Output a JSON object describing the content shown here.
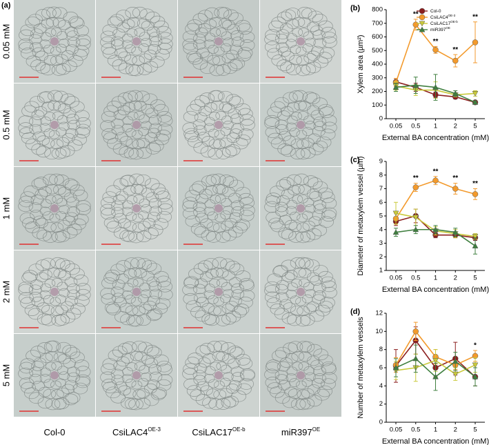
{
  "panel_a": {
    "label": "(a)",
    "rows": [
      "0.05 mM",
      "0.5 mM",
      "1 mM",
      "2 mM",
      "5 mM"
    ],
    "columns": [
      {
        "name": "Col-0"
      },
      {
        "name": "CsiLAC4",
        "sup": "OE-3"
      },
      {
        "name": "CsiLAC17",
        "sup": "OE-b"
      },
      {
        "name": "miR397",
        "sup": "OE"
      }
    ]
  },
  "chart_data": [
    {
      "type": "line",
      "panel_label": "(b)",
      "y_label": "Xylem area (µm²)",
      "x_label": "External BA concentration (mM)",
      "categories": [
        "0.05",
        "0.5",
        "1",
        "2",
        "5"
      ],
      "ylim": [
        0,
        800
      ],
      "yticks": [
        0,
        100,
        200,
        300,
        400,
        500,
        600,
        700,
        800
      ],
      "series": [
        {
          "name": "Col-0",
          "color": "#8b1e1e",
          "marker": "circle",
          "values": [
            270,
            230,
            175,
            160,
            120
          ],
          "errors": [
            25,
            30,
            20,
            15,
            10
          ]
        },
        {
          "name": "CsiLAC4",
          "name_sup": "OE-3",
          "color": "#f39a2c",
          "marker": "circle",
          "values": [
            265,
            690,
            505,
            425,
            560
          ],
          "errors": [
            30,
            40,
            25,
            45,
            150
          ]
        },
        {
          "name": "CsiLAC17",
          "name_sup": "OE-b",
          "color": "#c9c93a",
          "marker": "triangle-down",
          "values": [
            240,
            210,
            210,
            175,
            185
          ],
          "errors": [
            30,
            40,
            60,
            15,
            20
          ]
        },
        {
          "name": "miR397",
          "name_sup": "OE",
          "color": "#3f7f3f",
          "marker": "triangle-up",
          "values": [
            230,
            245,
            230,
            185,
            120
          ],
          "errors": [
            30,
            60,
            95,
            20,
            10
          ]
        }
      ],
      "annotations": [
        {
          "x": "0.5",
          "text": "**"
        },
        {
          "x": "1",
          "text": "**"
        },
        {
          "x": "2",
          "text": "**"
        },
        {
          "x": "5",
          "text": "**"
        }
      ]
    },
    {
      "type": "line",
      "panel_label": "(c)",
      "y_label": "Diameter of metaxylem vessel (µm)",
      "x_label": "External BA concentration (mM)",
      "categories": [
        "0.05",
        "0.5",
        "1",
        "2",
        "5"
      ],
      "ylim": [
        1,
        9
      ],
      "yticks": [
        1,
        2,
        3,
        4,
        5,
        6,
        7,
        8,
        9
      ],
      "series": [
        {
          "name": "Col-0",
          "color": "#8b1e1e",
          "marker": "circle",
          "values": [
            4.6,
            5.0,
            3.6,
            3.6,
            3.4
          ],
          "errors": [
            0.3,
            0.5,
            0.2,
            0.2,
            0.2
          ]
        },
        {
          "name": "CsiLAC4",
          "name_sup": "OE-3",
          "color": "#f39a2c",
          "marker": "circle",
          "values": [
            4.8,
            7.1,
            7.6,
            7.0,
            6.6
          ],
          "errors": [
            0.4,
            0.3,
            0.3,
            0.4,
            0.4
          ]
        },
        {
          "name": "CsiLAC17",
          "name_sup": "OE-b",
          "color": "#c9c93a",
          "marker": "triangle-down",
          "values": [
            5.2,
            4.9,
            3.9,
            3.7,
            3.5
          ],
          "errors": [
            0.8,
            0.6,
            0.3,
            0.3,
            0.2
          ]
        },
        {
          "name": "miR397",
          "name_sup": "OE",
          "color": "#3f7f3f",
          "marker": "triangle-up",
          "values": [
            3.8,
            4.0,
            4.0,
            3.8,
            2.8
          ],
          "errors": [
            0.3,
            0.3,
            0.3,
            0.3,
            0.6
          ]
        }
      ],
      "annotations": [
        {
          "x": "0.5",
          "text": "**"
        },
        {
          "x": "1",
          "text": "**"
        },
        {
          "x": "2",
          "text": "**"
        },
        {
          "x": "5",
          "text": "**"
        }
      ]
    },
    {
      "type": "line",
      "panel_label": "(d)",
      "y_label": "Number of metaxylem vessels",
      "x_label": "External BA concentration (mM)",
      "categories": [
        "0.05",
        "0.5",
        "1",
        "2",
        "5"
      ],
      "ylim": [
        0,
        12
      ],
      "yticks": [
        0,
        2,
        4,
        6,
        8,
        10,
        12
      ],
      "series": [
        {
          "name": "Col-0",
          "color": "#8b1e1e",
          "marker": "circle",
          "values": [
            6.2,
            9.0,
            6.0,
            7.0,
            5.0
          ],
          "errors": [
            1.8,
            1.5,
            1.0,
            1.8,
            1.0
          ]
        },
        {
          "name": "CsiLAC4",
          "name_sup": "OE-3",
          "color": "#f39a2c",
          "marker": "circle",
          "values": [
            6.3,
            10.0,
            7.2,
            6.3,
            7.3
          ],
          "errors": [
            0.8,
            1.0,
            0.8,
            0.5,
            0.6
          ]
        },
        {
          "name": "CsiLAC17",
          "name_sup": "OE-b",
          "color": "#c9c93a",
          "marker": "triangle-down",
          "values": [
            5.7,
            6.0,
            6.8,
            5.3,
            6.3
          ],
          "errors": [
            1.0,
            1.5,
            1.2,
            0.7,
            0.8
          ]
        },
        {
          "name": "miR397",
          "name_sup": "OE",
          "color": "#3f7f3f",
          "marker": "triangle-up",
          "values": [
            6.0,
            7.0,
            5.0,
            6.7,
            5.0
          ],
          "errors": [
            1.0,
            1.5,
            1.5,
            1.0,
            1.0
          ]
        }
      ],
      "annotations": [
        {
          "x": "5",
          "text": "*"
        }
      ]
    }
  ]
}
